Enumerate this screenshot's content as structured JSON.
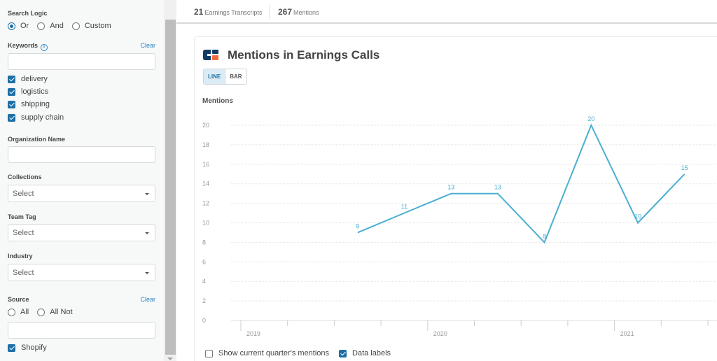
{
  "sidebar": {
    "search_logic": {
      "label": "Search Logic",
      "options": [
        {
          "label": "Or",
          "selected": true
        },
        {
          "label": "And",
          "selected": false
        },
        {
          "label": "Custom",
          "selected": false
        }
      ]
    },
    "keywords": {
      "label": "Keywords",
      "info_icon": "i",
      "clear_label": "Clear",
      "input_value": "",
      "items": [
        {
          "label": "delivery",
          "checked": true
        },
        {
          "label": "logistics",
          "checked": true
        },
        {
          "label": "shipping",
          "checked": true
        },
        {
          "label": "supply chain",
          "checked": true
        }
      ]
    },
    "organization_name": {
      "label": "Organization Name",
      "input_value": ""
    },
    "collections": {
      "label": "Collections",
      "value": "Select"
    },
    "team_tag": {
      "label": "Team Tag",
      "value": "Select"
    },
    "industry": {
      "label": "Industry",
      "value": "Select"
    },
    "source": {
      "label": "Source",
      "clear_label": "Clear",
      "options": [
        {
          "label": "All",
          "selected": false
        },
        {
          "label": "All Not",
          "selected": false
        }
      ],
      "input_value": "",
      "items": [
        {
          "label": "Shopify",
          "checked": true
        }
      ]
    }
  },
  "stats": {
    "transcripts_count": "21",
    "transcripts_label": "Earnings Transcripts",
    "mentions_count": "267",
    "mentions_label": "Mentions"
  },
  "card": {
    "title": "Mentions in Earnings Calls",
    "toggle": {
      "line_label": "LINE",
      "bar_label": "BAR",
      "active": "LINE"
    },
    "y_axis_title": "Mentions",
    "footer": {
      "show_current_quarter_label": "Show current quarter's mentions",
      "show_current_quarter_checked": false,
      "data_labels_label": "Data labels",
      "data_labels_checked": true
    }
  },
  "colors": {
    "accent": "#1d6fa5",
    "line": "#4aaed3",
    "link": "#2a86c2",
    "logo_navy": "#123a66",
    "logo_orange": "#f26a3a"
  },
  "chart_data": {
    "type": "line",
    "title": "Mentions in Earnings Calls",
    "xlabel": "",
    "ylabel": "Mentions",
    "ylim": [
      0,
      20
    ],
    "y_ticks": [
      0,
      2,
      4,
      6,
      8,
      10,
      12,
      14,
      16,
      18,
      20
    ],
    "x_year_labels": [
      "2019",
      "2020",
      "2021"
    ],
    "grid": true,
    "data_labels": true,
    "categories": [
      "2019 Q3",
      "2019 Q4",
      "2020 Q1",
      "2020 Q2",
      "2020 Q3",
      "2020 Q4",
      "2021 Q1",
      "2021 Q2"
    ],
    "values": [
      9,
      11,
      13,
      13,
      8,
      20,
      10,
      15
    ]
  }
}
